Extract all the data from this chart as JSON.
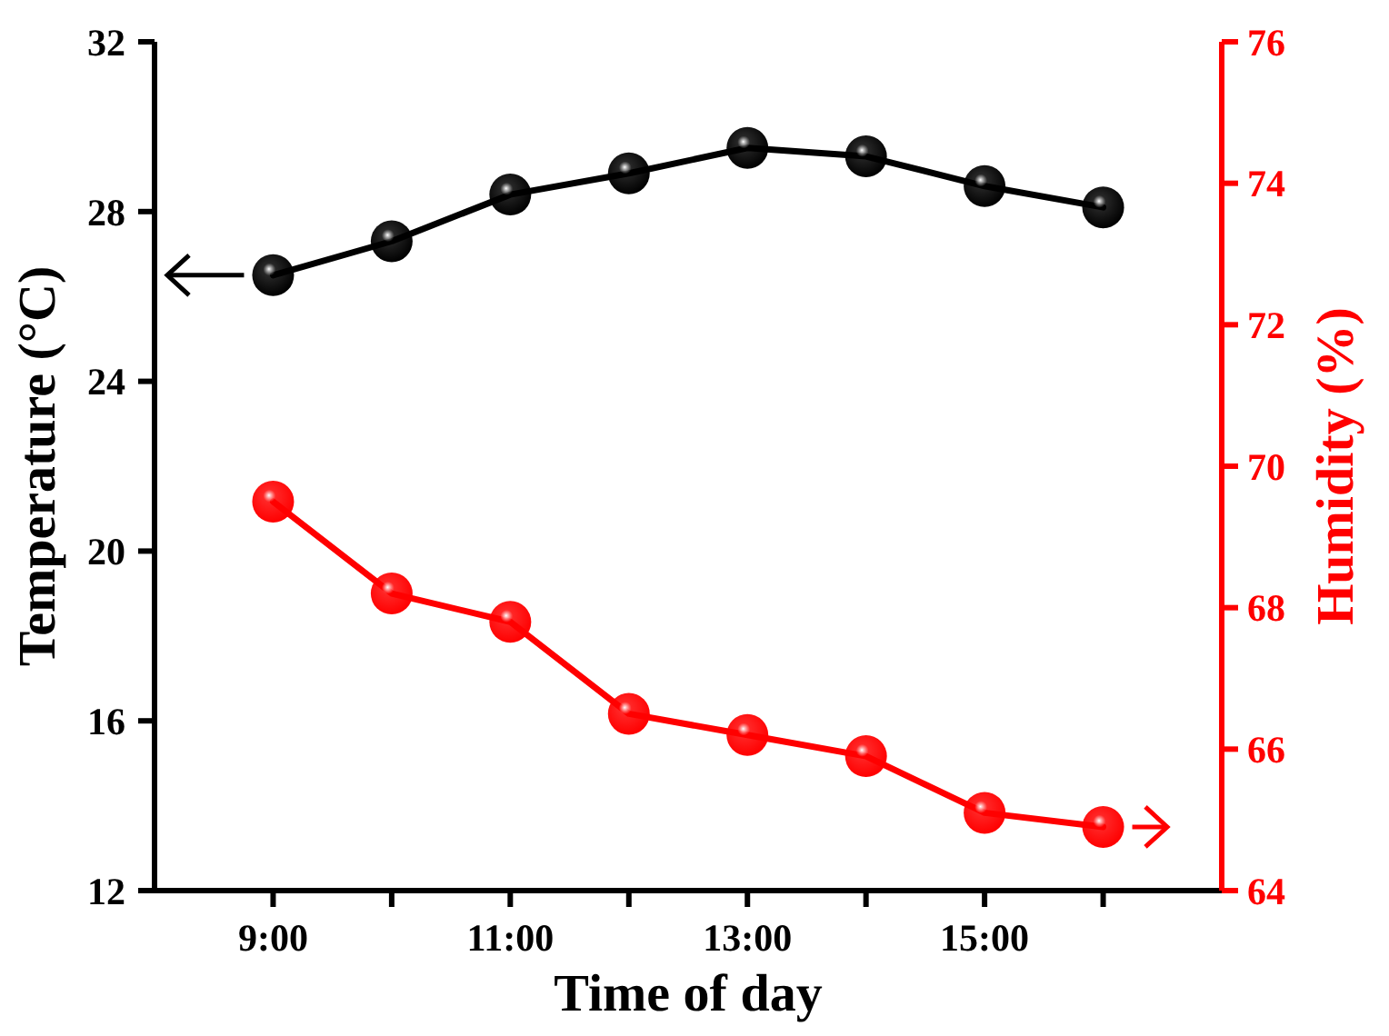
{
  "chart_data": {
    "type": "line",
    "xlabel": "Time of day",
    "ylabel": "Temperature (°C)",
    "y2label": "Humidity (%)",
    "x": [
      9,
      10,
      11,
      12,
      13,
      14,
      15,
      16
    ],
    "xlim": [
      8,
      17
    ],
    "xticks": [
      {
        "value": 9,
        "label": "9:00"
      },
      {
        "value": 10,
        "label": null
      },
      {
        "value": 11,
        "label": "11:00"
      },
      {
        "value": 12,
        "label": null
      },
      {
        "value": 13,
        "label": "13:00"
      },
      {
        "value": 14,
        "label": null
      },
      {
        "value": 15,
        "label": "15:00"
      },
      {
        "value": 16,
        "label": null
      }
    ],
    "ylim": [
      12,
      32
    ],
    "yticks": [
      12,
      16,
      20,
      24,
      28,
      32
    ],
    "y2lim": [
      64,
      76
    ],
    "y2ticks": [
      64,
      66,
      68,
      70,
      72,
      74,
      76
    ],
    "marker": "circle",
    "line_style": "solid",
    "series": [
      {
        "color": "#000000",
        "values": [
          26.5,
          27.3,
          28.4,
          28.9,
          29.5,
          29.3,
          28.6,
          28.1
        ]
      },
      {
        "color": "#ff0000",
        "axis": "y2",
        "values": [
          69.5,
          68.2,
          67.8,
          66.5,
          66.2,
          65.9,
          65.1,
          64.9
        ]
      }
    ]
  }
}
